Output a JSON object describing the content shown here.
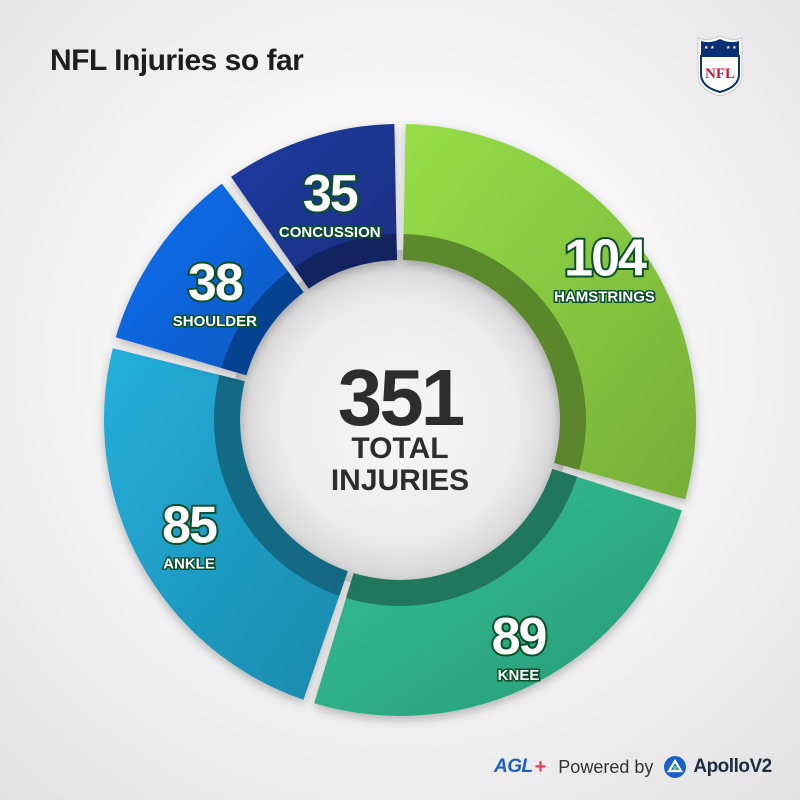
{
  "header": {
    "title": "NFL Injuries so far",
    "logo_text": "NFL"
  },
  "center": {
    "total": "351",
    "line1": "TOTAL",
    "line2": "INJURIES"
  },
  "footer": {
    "agl": "AGL",
    "agl_plus": "+",
    "powered_by": "Powered by",
    "apollo": "ApolloV2"
  },
  "colors": {
    "hamstrings": "#86c640",
    "knee": "#2eae86",
    "ankle": "#1f9cc4",
    "shoulder": "#0a63d8",
    "concussion": "#1c3590",
    "label_outline": "#0a4f2a"
  },
  "chart_data": {
    "type": "pie",
    "title": "NFL Injuries so far",
    "total": 351,
    "categories": [
      "HAMSTRINGS",
      "KNEE",
      "ANKLE",
      "SHOULDER",
      "CONCUSSION"
    ],
    "values": [
      104,
      89,
      85,
      38,
      35
    ],
    "value_labels": [
      "104",
      "89",
      "85",
      "38",
      "35"
    ]
  }
}
